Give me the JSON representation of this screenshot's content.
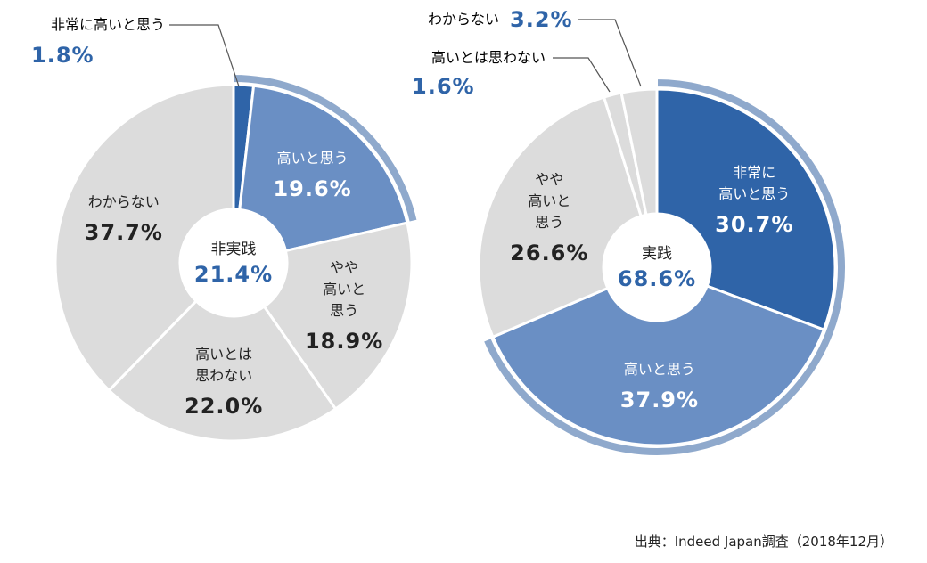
{
  "chart_data": [
    {
      "type": "donut",
      "center_title": "非実践",
      "center_value": 21.4,
      "center_value_label": "21.4%",
      "categories": [
        "非常に高いと思う",
        "高いと思う",
        "やや\n高いと\n思う",
        "高いとは\n思わない",
        "わからない"
      ],
      "values": [
        1.8,
        19.6,
        18.9,
        22.0,
        37.7
      ],
      "value_labels": [
        "1.8%",
        "19.6%",
        "18.9%",
        "22.0%",
        "37.7%"
      ],
      "colors": [
        "#2f64a8",
        "#6a8fc4",
        "#dcdcdc",
        "#dcdcdc",
        "#dcdcdc"
      ],
      "highlight_color": "#8fa9cc"
    },
    {
      "type": "donut",
      "center_title": "実践",
      "center_value": 68.6,
      "center_value_label": "68.6%",
      "categories": [
        "非常に\n高いと思う",
        "高いと思う",
        "やや\n高いと\n思う",
        "高いとは思わない",
        "わからない"
      ],
      "values": [
        30.7,
        37.9,
        26.6,
        1.6,
        3.2
      ],
      "value_labels": [
        "30.7%",
        "37.9%",
        "26.6%",
        "1.6%",
        "3.2%"
      ],
      "colors": [
        "#2f64a8",
        "#6a8fc4",
        "#dcdcdc",
        "#dcdcdc",
        "#dcdcdc"
      ],
      "highlight_color": "#8fa9cc"
    }
  ],
  "source": "出典：Indeed Japan調査（2018年12月）"
}
